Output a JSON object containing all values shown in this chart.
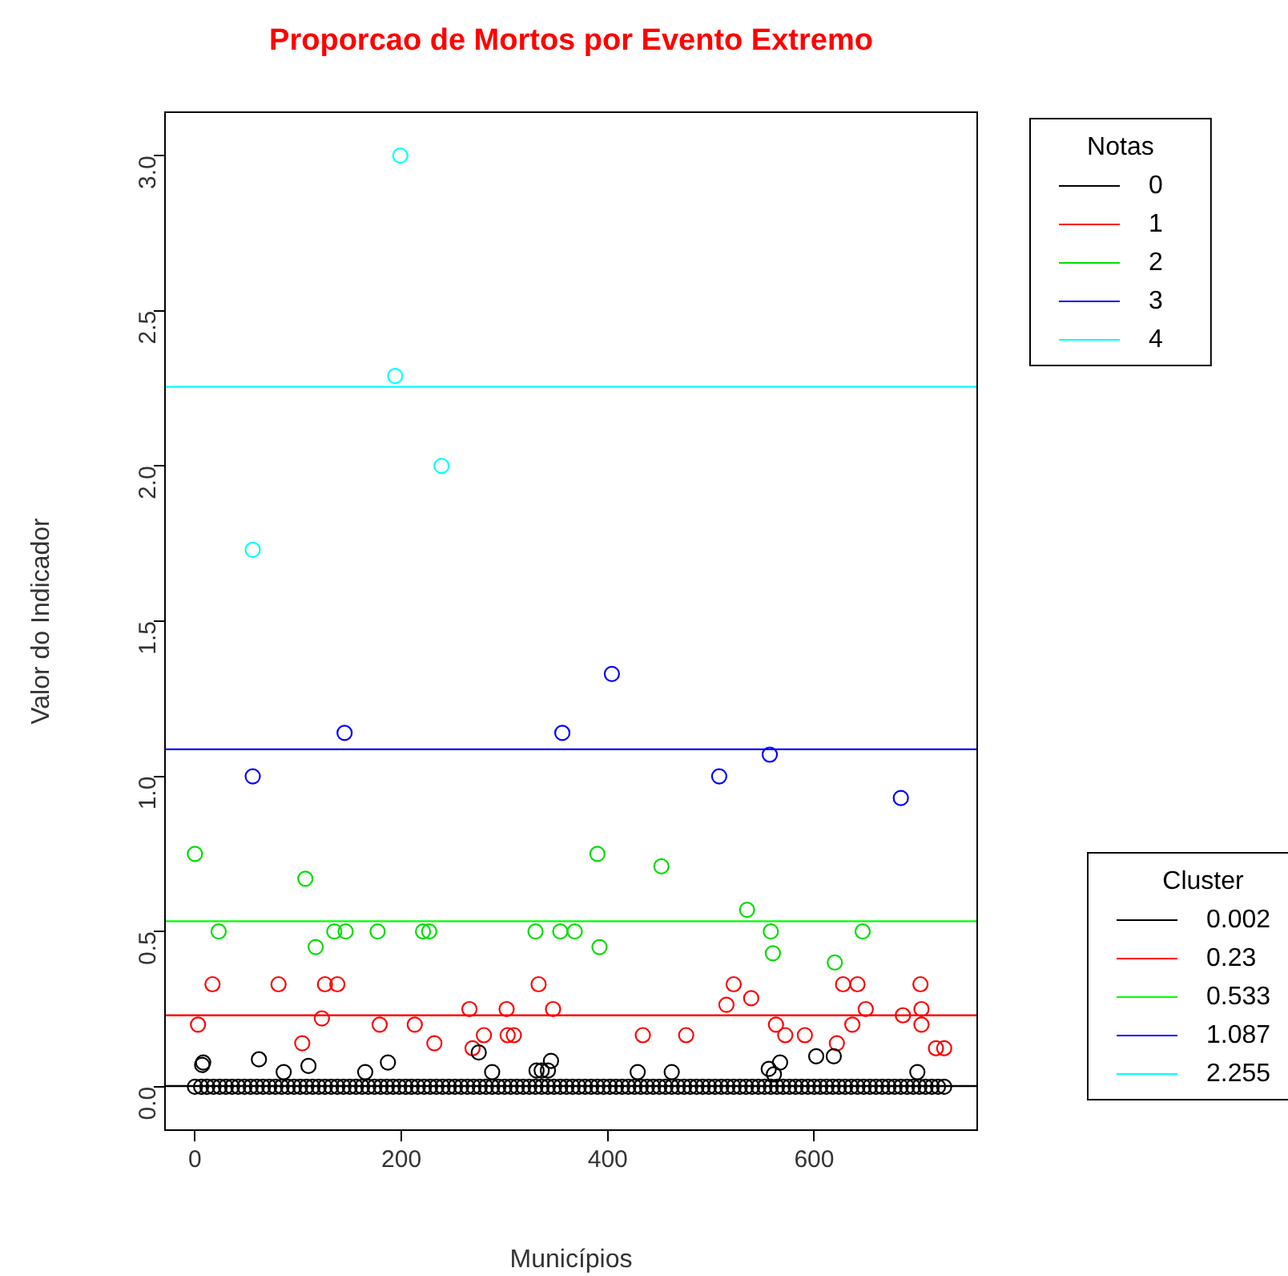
{
  "chart_data": {
    "type": "scatter",
    "title": "Proporcao de Mortos por Evento Extremo",
    "xlabel": "Municípios",
    "ylabel": "Valor do Indicador",
    "legend_title": "Notas",
    "legend": "right",
    "marker": "circle",
    "grid": false,
    "xlim": [
      -29,
      758
    ],
    "xticks": [
      0,
      200,
      400,
      600
    ],
    "ylim": [
      -0.14,
      3.14
    ],
    "yticks": [
      {
        "value": 0,
        "label": "0.0"
      },
      {
        "value": 0.5,
        "label": "0.5"
      },
      {
        "value": 1,
        "label": "1.0"
      },
      {
        "value": 1.5,
        "label": "1.5"
      },
      {
        "value": 2,
        "label": "2.0"
      },
      {
        "value": 2.5,
        "label": "2.5"
      },
      {
        "value": 3,
        "label": "3.0"
      }
    ],
    "series": [
      {
        "name": "0",
        "color": "#000000",
        "x": [
          0,
          6,
          12,
          18,
          24,
          30,
          36,
          42,
          48,
          54,
          60,
          66,
          72,
          78,
          84,
          90,
          96,
          102,
          108,
          114,
          120,
          126,
          132,
          138,
          144,
          150,
          156,
          162,
          168,
          174,
          180,
          186,
          192,
          198,
          204,
          210,
          216,
          222,
          228,
          234,
          240,
          246,
          252,
          258,
          264,
          270,
          276,
          282,
          288,
          294,
          300,
          306,
          312,
          318,
          324,
          330,
          336,
          342,
          348,
          354,
          360,
          366,
          372,
          378,
          384,
          390,
          396,
          402,
          408,
          414,
          420,
          426,
          432,
          438,
          444,
          450,
          456,
          462,
          468,
          474,
          480,
          486,
          492,
          498,
          504,
          510,
          516,
          522,
          528,
          534,
          540,
          546,
          552,
          558,
          564,
          570,
          576,
          582,
          588,
          594,
          600,
          606,
          612,
          618,
          624,
          630,
          636,
          642,
          648,
          654,
          660,
          666,
          672,
          678,
          684,
          690,
          696,
          702,
          708,
          714,
          720,
          726,
          7,
          8,
          62,
          86,
          110,
          165,
          187,
          275,
          288,
          331,
          336,
          342,
          345,
          429,
          462,
          556,
          561,
          567,
          602,
          619,
          700
        ],
        "values": [
          0,
          0,
          0,
          0,
          0,
          0,
          0,
          0,
          0,
          0,
          0,
          0,
          0,
          0,
          0,
          0,
          0,
          0,
          0,
          0,
          0,
          0,
          0,
          0,
          0,
          0,
          0,
          0,
          0,
          0,
          0,
          0,
          0,
          0,
          0,
          0,
          0,
          0,
          0,
          0,
          0,
          0,
          0,
          0,
          0,
          0,
          0,
          0,
          0,
          0,
          0,
          0,
          0,
          0,
          0,
          0,
          0,
          0,
          0,
          0,
          0,
          0,
          0,
          0,
          0,
          0,
          0,
          0,
          0,
          0,
          0,
          0,
          0,
          0,
          0,
          0,
          0,
          0,
          0,
          0,
          0,
          0,
          0,
          0,
          0,
          0,
          0,
          0,
          0,
          0,
          0,
          0,
          0,
          0,
          0,
          0,
          0,
          0,
          0,
          0,
          0,
          0,
          0,
          0,
          0,
          0,
          0,
          0,
          0,
          0,
          0,
          0,
          0,
          0,
          0,
          0,
          0,
          0,
          0,
          0,
          0,
          0,
          0.07,
          0.078,
          0.088,
          0.047,
          0.067,
          0.047,
          0.078,
          0.11,
          0.047,
          0.052,
          0.052,
          0.052,
          0.083,
          0.047,
          0.047,
          0.057,
          0.04,
          0.078,
          0.098,
          0.098,
          0.047
        ]
      },
      {
        "name": "1",
        "color": "#ff0000",
        "x": [
          17,
          81,
          126,
          138,
          333,
          3,
          123,
          179,
          213,
          104,
          232,
          266,
          302,
          347,
          280,
          303,
          309,
          269,
          522,
          628,
          642,
          703,
          539,
          515,
          650,
          704,
          686,
          704,
          563,
          637,
          434,
          476,
          572,
          591,
          622,
          718,
          726
        ],
        "values": [
          0.33,
          0.33,
          0.33,
          0.33,
          0.33,
          0.2,
          0.22,
          0.2,
          0.2,
          0.14,
          0.14,
          0.25,
          0.25,
          0.25,
          0.166,
          0.166,
          0.166,
          0.124,
          0.33,
          0.33,
          0.33,
          0.33,
          0.285,
          0.264,
          0.25,
          0.25,
          0.23,
          0.2,
          0.2,
          0.2,
          0.166,
          0.166,
          0.166,
          0.166,
          0.14,
          0.124,
          0.124
        ]
      },
      {
        "name": "2",
        "color": "#00dd00",
        "x": [
          0,
          107,
          23,
          117,
          135,
          146,
          177,
          221,
          227,
          330,
          354,
          368,
          390,
          392,
          452,
          535,
          558,
          560,
          620,
          647
        ],
        "values": [
          0.75,
          0.67,
          0.5,
          0.45,
          0.5,
          0.5,
          0.5,
          0.5,
          0.5,
          0.5,
          0.5,
          0.5,
          0.75,
          0.45,
          0.71,
          0.57,
          0.5,
          0.43,
          0.4,
          0.5
        ]
      },
      {
        "name": "3",
        "color": "#0000ff",
        "x": [
          56,
          145,
          356,
          404,
          508,
          557,
          684
        ],
        "values": [
          1.0,
          1.14,
          1.14,
          1.33,
          1.0,
          1.07,
          0.93
        ]
      },
      {
        "name": "4",
        "color": "#00ffff",
        "x": [
          199,
          194,
          239,
          56
        ],
        "values": [
          3.0,
          2.29,
          2.0,
          1.73
        ]
      }
    ],
    "ref_lines": [
      {
        "axis": "y",
        "value": 0.002,
        "label": "0.002",
        "color": "#000000"
      },
      {
        "axis": "y",
        "value": 0.23,
        "label": "0.23",
        "color": "#ff0000"
      },
      {
        "axis": "y",
        "value": 0.533,
        "label": "0.533",
        "color": "#00ff00"
      },
      {
        "axis": "y",
        "value": 1.087,
        "label": "1.087",
        "color": "#0000ff"
      },
      {
        "axis": "y",
        "value": 2.255,
        "label": "2.255",
        "color": "#00ffff"
      }
    ],
    "annotations": [
      "Cluster"
    ]
  }
}
